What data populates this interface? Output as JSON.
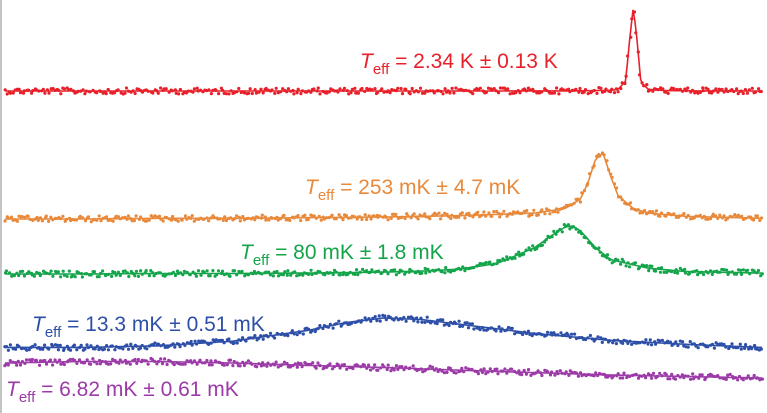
{
  "chart_data": {
    "type": "scatter",
    "title": "",
    "xlabel": "",
    "ylabel": "",
    "grid": false,
    "legend": "none",
    "series": [
      {
        "label": {
          "italic": "T",
          "sub": "eff",
          "rest": " = 2.34 K ± 0.13 K"
        },
        "color": "#e8202a",
        "x": [
          0.0,
          0.1,
          0.2,
          0.3,
          0.4,
          0.5,
          0.6,
          0.7,
          0.76,
          0.8,
          0.81,
          0.82,
          0.825,
          0.83,
          0.835,
          0.84,
          0.85,
          0.87,
          0.9,
          0.95,
          1.0
        ],
        "y": [
          0.0,
          0.0,
          0.0,
          0.0,
          0.0,
          0.0,
          0.0,
          0.001,
          0.002,
          0.008,
          0.02,
          0.12,
          0.6,
          1.0,
          0.6,
          0.1,
          0.02,
          0.006,
          0.002,
          0.001,
          0.0
        ]
      },
      {
        "label": {
          "italic": "T",
          "sub": "eff",
          "rest": " = 253 mK ± 4.7 mK"
        },
        "color": "#e8893b",
        "x": [
          0.0,
          0.1,
          0.2,
          0.3,
          0.4,
          0.5,
          0.6,
          0.7,
          0.74,
          0.76,
          0.77,
          0.78,
          0.79,
          0.8,
          0.81,
          0.83,
          0.85,
          0.9,
          1.0
        ],
        "y": [
          0.0,
          0.0,
          0.01,
          0.01,
          0.02,
          0.03,
          0.05,
          0.09,
          0.16,
          0.3,
          0.55,
          0.9,
          1.0,
          0.65,
          0.35,
          0.16,
          0.09,
          0.04,
          0.01
        ]
      },
      {
        "label": {
          "italic": "T",
          "sub": "eff",
          "rest": " = 80 mK ± 1.8 mK"
        },
        "color": "#14a44a",
        "x": [
          0.0,
          0.1,
          0.2,
          0.3,
          0.4,
          0.5,
          0.55,
          0.6,
          0.65,
          0.7,
          0.72,
          0.74,
          0.75,
          0.76,
          0.78,
          0.8,
          0.85,
          0.9,
          1.0
        ],
        "y": [
          0.0,
          0.0,
          0.01,
          0.01,
          0.02,
          0.04,
          0.06,
          0.1,
          0.22,
          0.55,
          0.78,
          0.98,
          1.0,
          0.9,
          0.55,
          0.3,
          0.12,
          0.05,
          0.02
        ]
      },
      {
        "label": {
          "italic": "T",
          "sub": "eff",
          "rest": " = 13.3 mK ± 0.51 mK"
        },
        "color": "#2d4fa8",
        "x": [
          0.0,
          0.1,
          0.2,
          0.3,
          0.4,
          0.45,
          0.5,
          0.55,
          0.6,
          0.7,
          0.8,
          0.9,
          1.0
        ],
        "y": [
          0.05,
          0.05,
          0.1,
          0.25,
          0.6,
          0.85,
          1.0,
          0.95,
          0.8,
          0.5,
          0.28,
          0.15,
          0.05
        ]
      },
      {
        "label": {
          "italic": "T",
          "sub": "eff",
          "rest": " = 6.82 mK ± 0.61 mK"
        },
        "color": "#9c3aa8",
        "x": [
          0.0,
          0.1,
          0.2,
          0.3,
          0.4,
          0.5,
          0.6,
          0.7,
          0.8,
          0.9,
          1.0
        ],
        "y": [
          0.5,
          0.55,
          0.55,
          0.5,
          0.42,
          0.35,
          0.26,
          0.18,
          0.1,
          0.05,
          0.0
        ]
      }
    ]
  }
}
